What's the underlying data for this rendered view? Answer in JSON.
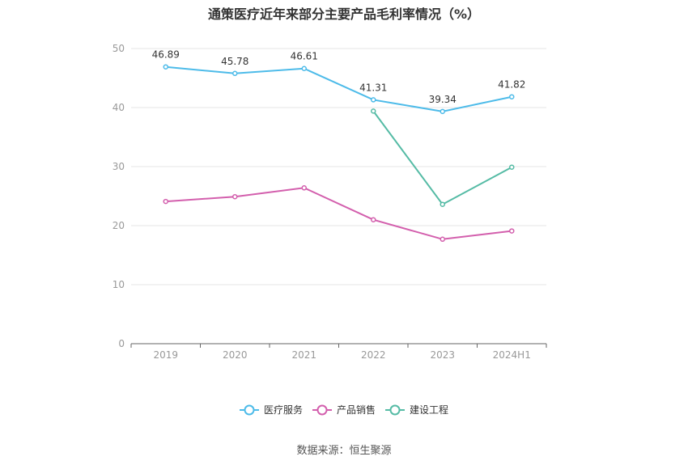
{
  "title": "通策医疗近年来部分主要产品毛利率情况（%）",
  "source": "数据来源：恒生聚源",
  "chart_data": {
    "type": "line",
    "title": "通策医疗近年来部分主要产品毛利率情况（%）",
    "categories": [
      "2019",
      "2020",
      "2021",
      "2022",
      "2023",
      "2024H1"
    ],
    "ylim": [
      0,
      50
    ],
    "yticks": [
      "0",
      "10",
      "20",
      "30",
      "40",
      "50"
    ],
    "grid": true,
    "legend_position": "bottom-center",
    "series": [
      {
        "name": "医疗服务",
        "color": "#4dbbe9",
        "show_labels": true,
        "values": [
          46.89,
          45.78,
          46.61,
          41.31,
          39.34,
          41.82
        ],
        "labels": [
          "46.89",
          "45.78",
          "46.61",
          "41.31",
          "39.34",
          "41.82"
        ]
      },
      {
        "name": "产品销售",
        "color": "#d35fad",
        "show_labels": false,
        "values": [
          24.1,
          24.9,
          26.4,
          21.0,
          17.7,
          19.1
        ]
      },
      {
        "name": "建设工程",
        "color": "#55bba5",
        "show_labels": false,
        "values": [
          null,
          null,
          null,
          39.4,
          23.6,
          29.9
        ]
      }
    ]
  }
}
